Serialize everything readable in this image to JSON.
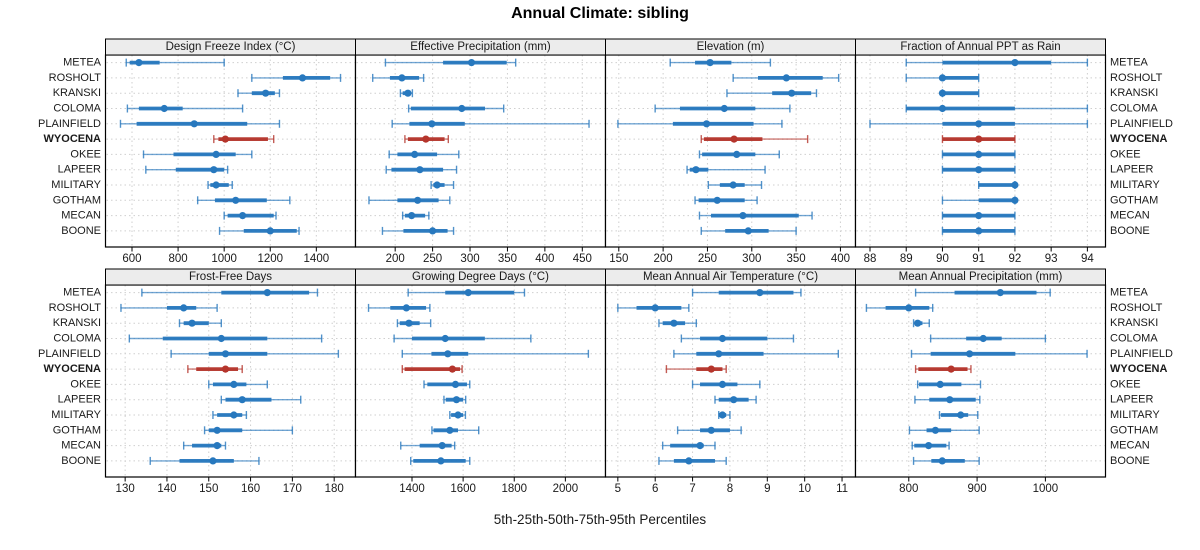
{
  "title": "Annual Climate: sibling",
  "caption": "5th-25th-50th-75th-95th Percentiles",
  "percentile_labels": [
    "5th",
    "25th",
    "50th",
    "75th",
    "95th"
  ],
  "sites": [
    "METEA",
    "ROSHOLT",
    "KRANSKI",
    "COLOMA",
    "PLAINFIELD",
    "WYOCENA",
    "OKEE",
    "LAPEER",
    "MILITARY",
    "GOTHAM",
    "MECAN",
    "BOONE"
  ],
  "highlight_site": "WYOCENA",
  "colors": {
    "series": "#2778be",
    "highlight": "#b5352c",
    "strip_bg": "#ececec",
    "grid": "#cfcfcf",
    "border": "#000000",
    "text": "#1a1a1a"
  },
  "chart_data": [
    {
      "type": "dot-whisker",
      "title": "Design Freeze Index (°C)",
      "grid_row": 0,
      "grid_col": 0,
      "xlim": [
        485,
        1570
      ],
      "ticks": [
        600,
        800,
        1000,
        1200,
        1400
      ],
      "series": [
        {
          "name": "METEA",
          "values": [
            575,
            590,
            630,
            720,
            1000
          ]
        },
        {
          "name": "ROSHOLT",
          "values": [
            1120,
            1255,
            1340,
            1460,
            1505
          ]
        },
        {
          "name": "KRANSKI",
          "values": [
            1060,
            1120,
            1180,
            1220,
            1240
          ]
        },
        {
          "name": "COLOMA",
          "values": [
            580,
            630,
            740,
            820,
            1080
          ]
        },
        {
          "name": "PLAINFIELD",
          "values": [
            550,
            620,
            870,
            1100,
            1240
          ]
        },
        {
          "name": "WYOCENA",
          "values": [
            955,
            975,
            1005,
            1190,
            1215
          ]
        },
        {
          "name": "OKEE",
          "values": [
            650,
            780,
            965,
            1050,
            1120
          ]
        },
        {
          "name": "LAPEER",
          "values": [
            660,
            790,
            955,
            1000,
            1015
          ]
        },
        {
          "name": "MILITARY",
          "values": [
            930,
            940,
            965,
            1020,
            1035
          ]
        },
        {
          "name": "GOTHAM",
          "values": [
            885,
            960,
            1050,
            1185,
            1285
          ]
        },
        {
          "name": "MECAN",
          "values": [
            1000,
            1015,
            1080,
            1215,
            1225
          ]
        },
        {
          "name": "BOONE",
          "values": [
            980,
            1085,
            1200,
            1315,
            1325
          ]
        }
      ]
    },
    {
      "type": "dot-whisker",
      "title": "Effective Precipitation (mm)",
      "grid_row": 0,
      "grid_col": 1,
      "xlim": [
        147,
        481
      ],
      "ticks": [
        200,
        250,
        300,
        350,
        400,
        450
      ],
      "series": [
        {
          "name": "METEA",
          "values": [
            187,
            264,
            302,
            349,
            361
          ]
        },
        {
          "name": "ROSHOLT",
          "values": [
            170,
            193,
            209,
            232,
            238
          ]
        },
        {
          "name": "KRANSKI",
          "values": [
            207,
            210,
            217,
            221,
            223
          ]
        },
        {
          "name": "COLOMA",
          "values": [
            218,
            221,
            289,
            320,
            345
          ]
        },
        {
          "name": "PLAINFIELD",
          "values": [
            196,
            219,
            249,
            293,
            459
          ]
        },
        {
          "name": "WYOCENA",
          "values": [
            213,
            217,
            241,
            266,
            271
          ]
        },
        {
          "name": "OKEE",
          "values": [
            192,
            203,
            226,
            256,
            285
          ]
        },
        {
          "name": "LAPEER",
          "values": [
            188,
            195,
            233,
            264,
            282
          ]
        },
        {
          "name": "MILITARY",
          "values": [
            248,
            251,
            256,
            266,
            278
          ]
        },
        {
          "name": "GOTHAM",
          "values": [
            165,
            203,
            230,
            258,
            273
          ]
        },
        {
          "name": "MECAN",
          "values": [
            210,
            213,
            222,
            240,
            245
          ]
        },
        {
          "name": "BOONE",
          "values": [
            183,
            211,
            250,
            270,
            278
          ]
        }
      ]
    },
    {
      "type": "dot-whisker",
      "title": "Elevation (m)",
      "grid_row": 0,
      "grid_col": 2,
      "xlim": [
        135,
        417
      ],
      "ticks": [
        150,
        200,
        250,
        300,
        350,
        400
      ],
      "series": [
        {
          "name": "METEA",
          "values": [
            208,
            236,
            253,
            277,
            321
          ]
        },
        {
          "name": "ROSHOLT",
          "values": [
            279,
            307,
            339,
            380,
            398
          ]
        },
        {
          "name": "KRANSKI",
          "values": [
            272,
            323,
            345,
            367,
            373
          ]
        },
        {
          "name": "COLOMA",
          "values": [
            191,
            219,
            269,
            304,
            343
          ]
        },
        {
          "name": "PLAINFIELD",
          "values": [
            149,
            211,
            249,
            302,
            334
          ]
        },
        {
          "name": "WYOCENA",
          "values": [
            243,
            246,
            280,
            312,
            363
          ]
        },
        {
          "name": "OKEE",
          "values": [
            241,
            244,
            283,
            304,
            331
          ]
        },
        {
          "name": "LAPEER",
          "values": [
            227,
            230,
            237,
            251,
            315
          ]
        },
        {
          "name": "MILITARY",
          "values": [
            251,
            264,
            279,
            292,
            311
          ]
        },
        {
          "name": "GOTHAM",
          "values": [
            236,
            240,
            261,
            292,
            306
          ]
        },
        {
          "name": "MECAN",
          "values": [
            241,
            254,
            290,
            353,
            368
          ]
        },
        {
          "name": "BOONE",
          "values": [
            243,
            270,
            296,
            319,
            350
          ]
        }
      ]
    },
    {
      "type": "dot-whisker",
      "title": "Fraction of Annual PPT as Rain",
      "grid_row": 0,
      "grid_col": 3,
      "xlim": [
        87.6,
        94.5
      ],
      "ticks": [
        88,
        89,
        90,
        91,
        92,
        93,
        94
      ],
      "series": [
        {
          "name": "METEA",
          "values": [
            89,
            90,
            92,
            93,
            94
          ]
        },
        {
          "name": "ROSHOLT",
          "values": [
            89,
            90,
            90,
            91,
            91
          ]
        },
        {
          "name": "KRANSKI",
          "values": [
            90,
            90,
            90,
            91,
            91
          ]
        },
        {
          "name": "COLOMA",
          "values": [
            89,
            89,
            90,
            92,
            94
          ]
        },
        {
          "name": "PLAINFIELD",
          "values": [
            88,
            90,
            91,
            92,
            94
          ]
        },
        {
          "name": "WYOCENA",
          "values": [
            90,
            90,
            91,
            92,
            92
          ]
        },
        {
          "name": "OKEE",
          "values": [
            90,
            90,
            91,
            92,
            92
          ]
        },
        {
          "name": "LAPEER",
          "values": [
            90,
            90,
            91,
            92,
            92
          ]
        },
        {
          "name": "MILITARY",
          "values": [
            91,
            91,
            92,
            92,
            92
          ]
        },
        {
          "name": "GOTHAM",
          "values": [
            90,
            91,
            92,
            92,
            92
          ]
        },
        {
          "name": "MECAN",
          "values": [
            90,
            90,
            91,
            92,
            92
          ]
        },
        {
          "name": "BOONE",
          "values": [
            90,
            90,
            91,
            92,
            92
          ]
        }
      ]
    },
    {
      "type": "dot-whisker",
      "title": "Frost-Free Days",
      "grid_row": 1,
      "grid_col": 0,
      "xlim": [
        125.3,
        185.1
      ],
      "ticks": [
        130,
        140,
        150,
        160,
        170,
        180
      ],
      "series": [
        {
          "name": "METEA",
          "values": [
            134,
            153,
            164,
            174,
            176
          ]
        },
        {
          "name": "ROSHOLT",
          "values": [
            129,
            140,
            144,
            147,
            152
          ]
        },
        {
          "name": "KRANSKI",
          "values": [
            143,
            144,
            146,
            150,
            153
          ]
        },
        {
          "name": "COLOMA",
          "values": [
            131,
            139,
            153,
            164,
            177
          ]
        },
        {
          "name": "PLAINFIELD",
          "values": [
            141,
            150,
            154,
            164,
            181
          ]
        },
        {
          "name": "WYOCENA",
          "values": [
            145,
            147,
            154,
            157,
            158
          ]
        },
        {
          "name": "OKEE",
          "values": [
            150,
            151,
            156,
            159,
            164
          ]
        },
        {
          "name": "LAPEER",
          "values": [
            153,
            154,
            158,
            165,
            172
          ]
        },
        {
          "name": "MILITARY",
          "values": [
            151,
            152,
            156,
            158,
            159
          ]
        },
        {
          "name": "GOTHAM",
          "values": [
            149,
            150,
            152,
            158,
            170
          ]
        },
        {
          "name": "MECAN",
          "values": [
            144,
            146,
            152,
            153,
            154
          ]
        },
        {
          "name": "BOONE",
          "values": [
            136,
            143,
            151,
            156,
            162
          ]
        }
      ]
    },
    {
      "type": "dot-whisker",
      "title": "Growing Degree Days (°C)",
      "grid_row": 1,
      "grid_col": 1,
      "xlim": [
        1179,
        2157
      ],
      "ticks": [
        1400,
        1600,
        1800,
        2000
      ],
      "series": [
        {
          "name": "METEA",
          "values": [
            1385,
            1530,
            1620,
            1800,
            1840
          ]
        },
        {
          "name": "ROSHOLT",
          "values": [
            1230,
            1315,
            1378,
            1455,
            1470
          ]
        },
        {
          "name": "KRANSKI",
          "values": [
            1343,
            1352,
            1388,
            1430,
            1473
          ]
        },
        {
          "name": "COLOMA",
          "values": [
            1330,
            1400,
            1530,
            1685,
            1865
          ]
        },
        {
          "name": "PLAINFIELD",
          "values": [
            1362,
            1476,
            1540,
            1620,
            2090
          ]
        },
        {
          "name": "WYOCENA",
          "values": [
            1362,
            1371,
            1558,
            1588,
            1596
          ]
        },
        {
          "name": "OKEE",
          "values": [
            1447,
            1460,
            1570,
            1615,
            1626
          ]
        },
        {
          "name": "LAPEER",
          "values": [
            1525,
            1532,
            1574,
            1600,
            1610
          ]
        },
        {
          "name": "MILITARY",
          "values": [
            1548,
            1553,
            1580,
            1600,
            1609
          ]
        },
        {
          "name": "GOTHAM",
          "values": [
            1478,
            1484,
            1548,
            1580,
            1661
          ]
        },
        {
          "name": "MECAN",
          "values": [
            1356,
            1430,
            1518,
            1555,
            1567
          ]
        },
        {
          "name": "BOONE",
          "values": [
            1395,
            1405,
            1513,
            1610,
            1626
          ]
        }
      ]
    },
    {
      "type": "dot-whisker",
      "title": "Mean Annual Air Temperature (°C)",
      "grid_row": 1,
      "grid_col": 2,
      "xlim": [
        4.67,
        11.36
      ],
      "ticks": [
        5,
        6,
        7,
        8,
        9,
        10,
        11
      ],
      "series": [
        {
          "name": "METEA",
          "values": [
            7.0,
            7.7,
            8.8,
            9.7,
            9.9
          ]
        },
        {
          "name": "ROSHOLT",
          "values": [
            5.0,
            5.5,
            6.0,
            6.7,
            6.9
          ]
        },
        {
          "name": "KRANSKI",
          "values": [
            6.1,
            6.2,
            6.5,
            6.8,
            7.1
          ]
        },
        {
          "name": "COLOMA",
          "values": [
            6.7,
            7.2,
            7.8,
            9.0,
            9.7
          ]
        },
        {
          "name": "PLAINFIELD",
          "values": [
            6.5,
            7.1,
            7.7,
            8.9,
            10.9
          ]
        },
        {
          "name": "WYOCENA",
          "values": [
            6.3,
            7.1,
            7.5,
            7.8,
            7.9
          ]
        },
        {
          "name": "OKEE",
          "values": [
            7.0,
            7.2,
            7.8,
            8.2,
            8.8
          ]
        },
        {
          "name": "LAPEER",
          "values": [
            7.6,
            7.7,
            8.1,
            8.5,
            8.7
          ]
        },
        {
          "name": "MILITARY",
          "values": [
            7.7,
            7.7,
            7.8,
            7.9,
            8.0
          ]
        },
        {
          "name": "GOTHAM",
          "values": [
            6.6,
            7.2,
            7.5,
            8.0,
            8.3
          ]
        },
        {
          "name": "MECAN",
          "values": [
            6.2,
            6.4,
            7.2,
            7.3,
            7.6
          ]
        },
        {
          "name": "BOONE",
          "values": [
            6.1,
            6.5,
            6.9,
            7.6,
            7.9
          ]
        }
      ]
    },
    {
      "type": "dot-whisker",
      "title": "Mean Annual Precipitation (mm)",
      "grid_row": 1,
      "grid_col": 3,
      "xlim": [
        722,
        1088
      ],
      "ticks": [
        800,
        900,
        1000
      ],
      "series": [
        {
          "name": "METEA",
          "values": [
            810,
            867,
            934,
            987,
            1007
          ]
        },
        {
          "name": "ROSHOLT",
          "values": [
            738,
            766,
            800,
            830,
            835
          ]
        },
        {
          "name": "KRANSKI",
          "values": [
            807,
            809,
            813,
            820,
            830
          ]
        },
        {
          "name": "COLOMA",
          "values": [
            832,
            884,
            909,
            936,
            1000
          ]
        },
        {
          "name": "PLAINFIELD",
          "values": [
            804,
            832,
            889,
            956,
            1061
          ]
        },
        {
          "name": "WYOCENA",
          "values": [
            810,
            814,
            862,
            886,
            891
          ]
        },
        {
          "name": "OKEE",
          "values": [
            813,
            815,
            846,
            877,
            905
          ]
        },
        {
          "name": "LAPEER",
          "values": [
            809,
            830,
            860,
            898,
            904
          ]
        },
        {
          "name": "MILITARY",
          "values": [
            845,
            847,
            876,
            887,
            901
          ]
        },
        {
          "name": "GOTHAM",
          "values": [
            801,
            826,
            839,
            862,
            903
          ]
        },
        {
          "name": "MECAN",
          "values": [
            805,
            808,
            829,
            855,
            859
          ]
        },
        {
          "name": "BOONE",
          "values": [
            807,
            833,
            849,
            882,
            903
          ]
        }
      ]
    }
  ]
}
